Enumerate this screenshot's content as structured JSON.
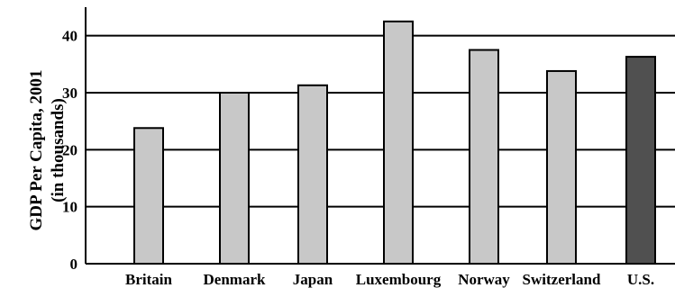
{
  "chart_data": {
    "type": "bar",
    "title": "",
    "xlabel": "",
    "ylabel": "GDP Per Capita, 2001",
    "ylabel_sub": "(in thousands)",
    "categories": [
      "Britain",
      "Denmark",
      "Japan",
      "Luxembourg",
      "Norway",
      "Switzerland",
      "U.S."
    ],
    "values": [
      23.8,
      30,
      31.3,
      42.5,
      37.5,
      33.8,
      36.3
    ],
    "bar_colors": [
      "#c8c8c8",
      "#c8c8c8",
      "#c8c8c8",
      "#c8c8c8",
      "#c8c8c8",
      "#c8c8c8",
      "#505050"
    ],
    "yticks": [
      "0",
      "10",
      "20",
      "30",
      "40"
    ],
    "ylim": [
      0,
      45
    ],
    "grid": true,
    "legend": "none"
  }
}
